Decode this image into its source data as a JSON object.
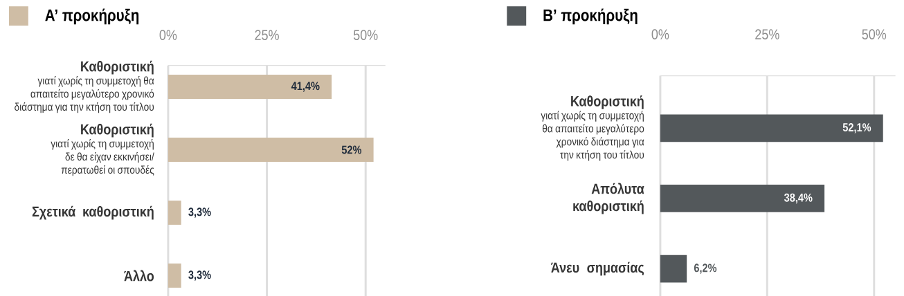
{
  "chart_data": [
    {
      "type": "bar",
      "orientation": "horizontal",
      "categories": [
        "**Καθοριστική** γιατί χωρίς τη συμμετοχή θα απαιτείτο μεγαλύτερο χρονικό διάστημα για την κτήση του τίτλου",
        "**Καθοριστική** γιατί χωρίς τη συμμετοχή δε θα είχαν εκκινήσει/ περατωθεί οι σπουδές",
        "Σχετικά καθοριστική",
        "Άλλο"
      ],
      "series": [
        {
          "name": "Α’ προκήρυξη",
          "color": "#cfbda5",
          "values": [
            41.4,
            52,
            3.3,
            3.3
          ],
          "value_labels": [
            "41,4%",
            "52%",
            "3,3%",
            "3,3%"
          ]
        }
      ],
      "xlim": [
        0,
        55
      ],
      "xticks": [
        {
          "value": 0,
          "label": "0%"
        },
        {
          "value": 25,
          "label": "25%"
        },
        {
          "value": 50,
          "label": "50%"
        }
      ],
      "grid": "x",
      "legend": "top left"
    },
    {
      "type": "bar",
      "orientation": "horizontal",
      "categories": [
        "**Καθοριστική** γιατί χωρίς τη συμμετοχή θα απαιτείτο μεγαλύτερο χρονικό διάστημα για την κτήση του τίτλου",
        "Απόλυτα καθοριστική",
        "Άνευ σημασίας"
      ],
      "series": [
        {
          "name": "Β’ προκήρυξη",
          "color": "#53585b",
          "values": [
            52.1,
            38.4,
            6.2
          ],
          "value_labels": [
            "52,1%",
            "38,4%",
            "6,2%"
          ]
        }
      ],
      "xlim": [
        0,
        55
      ],
      "xticks": [
        {
          "value": 0,
          "label": "0%"
        },
        {
          "value": 25,
          "label": "25%"
        },
        {
          "value": 50,
          "label": "50%"
        }
      ],
      "grid": "x",
      "legend": "top left"
    }
  ]
}
